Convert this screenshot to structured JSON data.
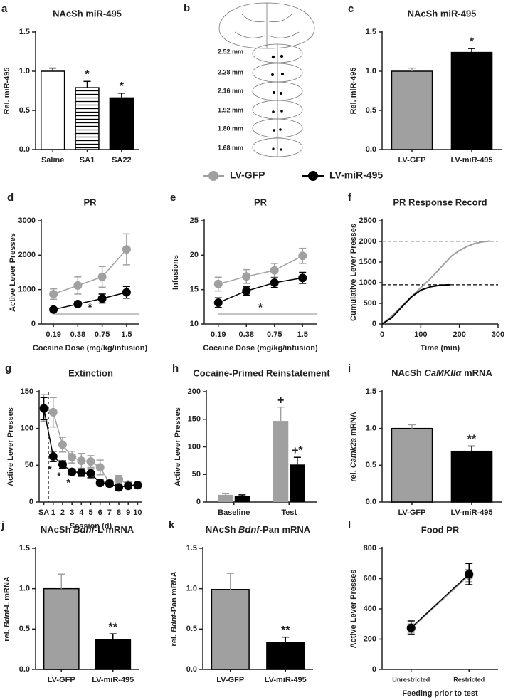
{
  "legend": [
    {
      "name": "LV-GFP",
      "color": "#a0a0a0"
    },
    {
      "name": "LV-miR-495",
      "color": "#000000"
    }
  ],
  "atlas": {
    "label": "b",
    "levels": [
      "2.52 mm",
      "2.28 mm",
      "2.16 mm",
      "1.92 mm",
      "1.80 mm",
      "1.68 mm"
    ]
  },
  "chart_data": [
    {
      "label": "a",
      "type": "bar",
      "title": "NAcSh miR-495",
      "ylabel": "Rel. miR-495",
      "categories": [
        "Saline",
        "SA1",
        "SA22"
      ],
      "values": [
        1.0,
        0.79,
        0.66
      ],
      "errors": [
        0.04,
        0.08,
        0.06
      ],
      "colors": [
        "#ffffff",
        "#ffffff",
        "#000000"
      ],
      "hatch": [
        false,
        true,
        false
      ],
      "value_annotations": [
        null,
        "*",
        "*"
      ],
      "ylim": [
        0,
        1.5
      ],
      "yticks": [
        {
          "value": 0,
          "label": "0.0"
        },
        0.5,
        {
          "value": 1,
          "label": "1.0"
        },
        1.5
      ]
    },
    {
      "label": "c",
      "type": "bar",
      "title": "NAcSh miR-495",
      "ylabel": "Rel. miR-495",
      "categories": [
        "LV-GFP",
        "LV-miR-495"
      ],
      "values": [
        1.0,
        1.24
      ],
      "errors": [
        0.04,
        0.05
      ],
      "colors": [
        "#a0a0a0",
        "#000000"
      ],
      "value_annotations": [
        null,
        "*"
      ],
      "ylim": [
        0,
        1.5
      ],
      "yticks": [
        {
          "value": 0,
          "label": "0.0"
        },
        0.5,
        {
          "value": 1,
          "label": "1.0"
        },
        1.5
      ]
    },
    {
      "label": "d",
      "type": "line",
      "title": "PR",
      "xlabel": "Cocaine Dose (mg/kg/infusion)",
      "ylabel": "Active Lever Presses",
      "categories": [
        "0.19",
        "0.38",
        "0.75",
        "1.5"
      ],
      "series": [
        {
          "color": "#a0a0a0",
          "values": [
            870,
            1120,
            1370,
            2170
          ],
          "errors": [
            150,
            250,
            300,
            450
          ]
        },
        {
          "color": "#000000",
          "values": [
            420,
            580,
            740,
            920
          ],
          "errors": [
            60,
            60,
            130,
            170
          ]
        }
      ],
      "annotations": [
        "*"
      ],
      "ylim": [
        0,
        3000
      ],
      "yticks": [
        0,
        1000,
        2000,
        3000
      ]
    },
    {
      "label": "e",
      "type": "line",
      "title": "PR",
      "xlabel": "Cocaine Dose (mg/kg/infusion)",
      "ylabel": "Infusions",
      "categories": [
        "0.19",
        "0.38",
        "0.75",
        "1.5"
      ],
      "series": [
        {
          "color": "#a0a0a0",
          "values": [
            15.8,
            16.9,
            17.8,
            19.9
          ],
          "errors": [
            1.0,
            1.0,
            1.0,
            1.1
          ]
        },
        {
          "color": "#000000",
          "values": [
            13.1,
            14.8,
            16.0,
            16.7
          ],
          "errors": [
            0.7,
            0.6,
            0.7,
            0.8
          ]
        }
      ],
      "annotations": [
        "*"
      ],
      "ylim": [
        10,
        25
      ],
      "yticks": [
        10,
        15,
        20,
        25
      ]
    },
    {
      "label": "f",
      "type": "line",
      "title": "PR Response Record",
      "xlabel": "Time (min)",
      "ylabel": "Cumulative Lever Presses",
      "xlim": [
        0,
        300
      ],
      "xticks": [
        0,
        100,
        200,
        300
      ],
      "ylim": [
        0,
        2500
      ],
      "yticks": [
        0,
        500,
        1000,
        1500,
        2000,
        2500
      ],
      "series": [
        {
          "color": "#a0a0a0",
          "x": [
            0,
            20,
            40,
            60,
            80,
            100,
            120,
            140,
            160,
            180,
            200,
            220,
            240,
            260,
            280
          ],
          "values": [
            0,
            150,
            330,
            520,
            700,
            880,
            1050,
            1250,
            1450,
            1650,
            1780,
            1880,
            1950,
            1990,
            2010
          ]
        },
        {
          "color": "#000000",
          "x": [
            0,
            25,
            50,
            75,
            100,
            125,
            150,
            175
          ],
          "values": [
            0,
            150,
            400,
            650,
            820,
            900,
            940,
            950
          ]
        }
      ],
      "reference_lines": [
        {
          "value": 2000,
          "color": "#a0a0a0"
        },
        {
          "value": 950,
          "color": "#000000"
        }
      ]
    },
    {
      "label": "g",
      "type": "line",
      "title": "Extinction",
      "xlabel": "Session (d)",
      "ylabel": "Active Lever Presses",
      "categories": [
        "SA",
        "1",
        "2",
        "3",
        "4",
        "5",
        "6",
        "7",
        "8",
        "9",
        "10"
      ],
      "divider": true,
      "series": [
        {
          "color": "#a0a0a0",
          "values": [
            128,
            122,
            78,
            61,
            56,
            55,
            47,
            26,
            31,
            24,
            23
          ],
          "errors": [
            18,
            20,
            10,
            8,
            10,
            8,
            10,
            5,
            5,
            4,
            4
          ]
        },
        {
          "color": "#000000",
          "values": [
            127,
            62,
            51,
            41,
            40,
            39,
            26,
            25,
            20,
            22,
            23
          ],
          "errors": [
            15,
            7,
            5,
            4,
            5,
            6,
            4,
            4,
            4,
            4,
            3
          ],
          "annotations": [
            null,
            "*",
            "*",
            "*",
            null,
            null,
            null,
            null,
            null,
            null,
            null
          ]
        }
      ],
      "ylim": [
        0,
        150
      ],
      "yticks": [
        0,
        50,
        100,
        150
      ]
    },
    {
      "label": "h",
      "type": "bar",
      "title": "Cocaine-Primed Reinstatement",
      "ylabel": "Active Lever Presses",
      "categories": [
        "Baseline",
        "Test"
      ],
      "series": [
        {
          "color": "#a0a0a0",
          "values": [
            13,
            147
          ],
          "errors": [
            2,
            25
          ],
          "annotations": [
            null,
            "+"
          ]
        },
        {
          "color": "#000000",
          "values": [
            11,
            68
          ],
          "errors": [
            2,
            13
          ],
          "annotations": [
            null,
            "+*"
          ]
        }
      ],
      "ylim": [
        0,
        200
      ],
      "yticks": [
        0,
        50,
        100,
        150,
        200
      ]
    },
    {
      "label": "i",
      "type": "bar",
      "title": [
        "NAcSh ",
        "CaMKIIα",
        " mRNA"
      ],
      "title_italic": [
        false,
        true,
        false
      ],
      "ylabel": [
        "rel. ",
        "Camk2a",
        " mRNA"
      ],
      "ylabel_italic": [
        false,
        true,
        false
      ],
      "categories": [
        "LV-GFP",
        "LV-miR-495"
      ],
      "values": [
        1.0,
        0.69
      ],
      "errors": [
        0.05,
        0.07
      ],
      "colors": [
        "#a0a0a0",
        "#000000"
      ],
      "value_annotations": [
        null,
        "**"
      ],
      "ylim": [
        0,
        1.5
      ],
      "yticks": [
        {
          "value": 0,
          "label": "0.0"
        },
        0.5,
        {
          "value": 1,
          "label": "1.0"
        },
        1.5
      ]
    },
    {
      "label": "j",
      "type": "bar",
      "title": [
        "NAcSh ",
        "Bdnf",
        "-L mRNA"
      ],
      "title_italic": [
        false,
        true,
        false
      ],
      "ylabel": [
        "rel. ",
        "Bdnf",
        "-L mRNA"
      ],
      "ylabel_italic": [
        false,
        true,
        false
      ],
      "categories": [
        "LV-GFP",
        "LV-miR-495"
      ],
      "values": [
        1.0,
        0.37
      ],
      "errors": [
        0.18,
        0.07
      ],
      "colors": [
        "#a0a0a0",
        "#000000"
      ],
      "value_annotations": [
        null,
        "**"
      ],
      "ylim": [
        0,
        1.5
      ],
      "yticks": [
        {
          "value": 0,
          "label": "0.0"
        },
        0.5,
        {
          "value": 1,
          "label": "1.0"
        },
        1.5
      ]
    },
    {
      "label": "k",
      "type": "bar",
      "title": [
        "NAcSh ",
        "Bdnf",
        "-Pan mRNA"
      ],
      "title_italic": [
        false,
        true,
        false
      ],
      "ylabel": [
        "rel. ",
        "Bdnf",
        "-Pan mRNA"
      ],
      "ylabel_italic": [
        false,
        true,
        false
      ],
      "categories": [
        "LV-GFP",
        "LV-miR-495"
      ],
      "values": [
        0.99,
        0.33
      ],
      "errors": [
        0.2,
        0.07
      ],
      "colors": [
        "#a0a0a0",
        "#000000"
      ],
      "value_annotations": [
        null,
        "**"
      ],
      "ylim": [
        0,
        1.5
      ],
      "yticks": [
        {
          "value": 0,
          "label": "0.0"
        },
        0.5,
        {
          "value": 1,
          "label": "1.0"
        },
        1.5
      ]
    },
    {
      "label": "l",
      "type": "line",
      "title": "Food PR",
      "xlabel": "Feeding prior to test",
      "ylabel": "Active Lever Presses",
      "categories": [
        "Unrestricted",
        "Restricted"
      ],
      "series": [
        {
          "color": "#a0a0a0",
          "values": [
            270,
            620
          ],
          "errors": [
            30,
            40
          ]
        },
        {
          "color": "#000000",
          "values": [
            275,
            630
          ],
          "errors": [
            45,
            70
          ]
        }
      ],
      "ylim": [
        0,
        800
      ],
      "yticks": [
        0,
        200,
        400,
        600,
        800
      ]
    }
  ]
}
